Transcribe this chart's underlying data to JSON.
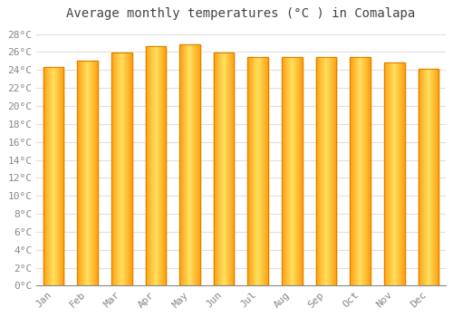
{
  "title": "Average monthly temperatures (°C ) in Comalapa",
  "months": [
    "Jan",
    "Feb",
    "Mar",
    "Apr",
    "May",
    "Jun",
    "Jul",
    "Aug",
    "Sep",
    "Oct",
    "Nov",
    "Dec"
  ],
  "values": [
    24.3,
    25.0,
    25.9,
    26.6,
    26.9,
    25.9,
    25.4,
    25.4,
    25.4,
    25.4,
    24.8,
    24.1
  ],
  "bar_color_edge": "#E08000",
  "bar_color_center": "#FFE060",
  "bar_color_side": "#FFA010",
  "ylim": [
    0,
    29
  ],
  "yticks": [
    0,
    2,
    4,
    6,
    8,
    10,
    12,
    14,
    16,
    18,
    20,
    22,
    24,
    26,
    28
  ],
  "background_color": "#ffffff",
  "grid_color": "#e0e0e0",
  "title_fontsize": 10,
  "tick_fontsize": 8,
  "text_color": "#888888",
  "bar_width": 0.6,
  "title_color": "#444444"
}
